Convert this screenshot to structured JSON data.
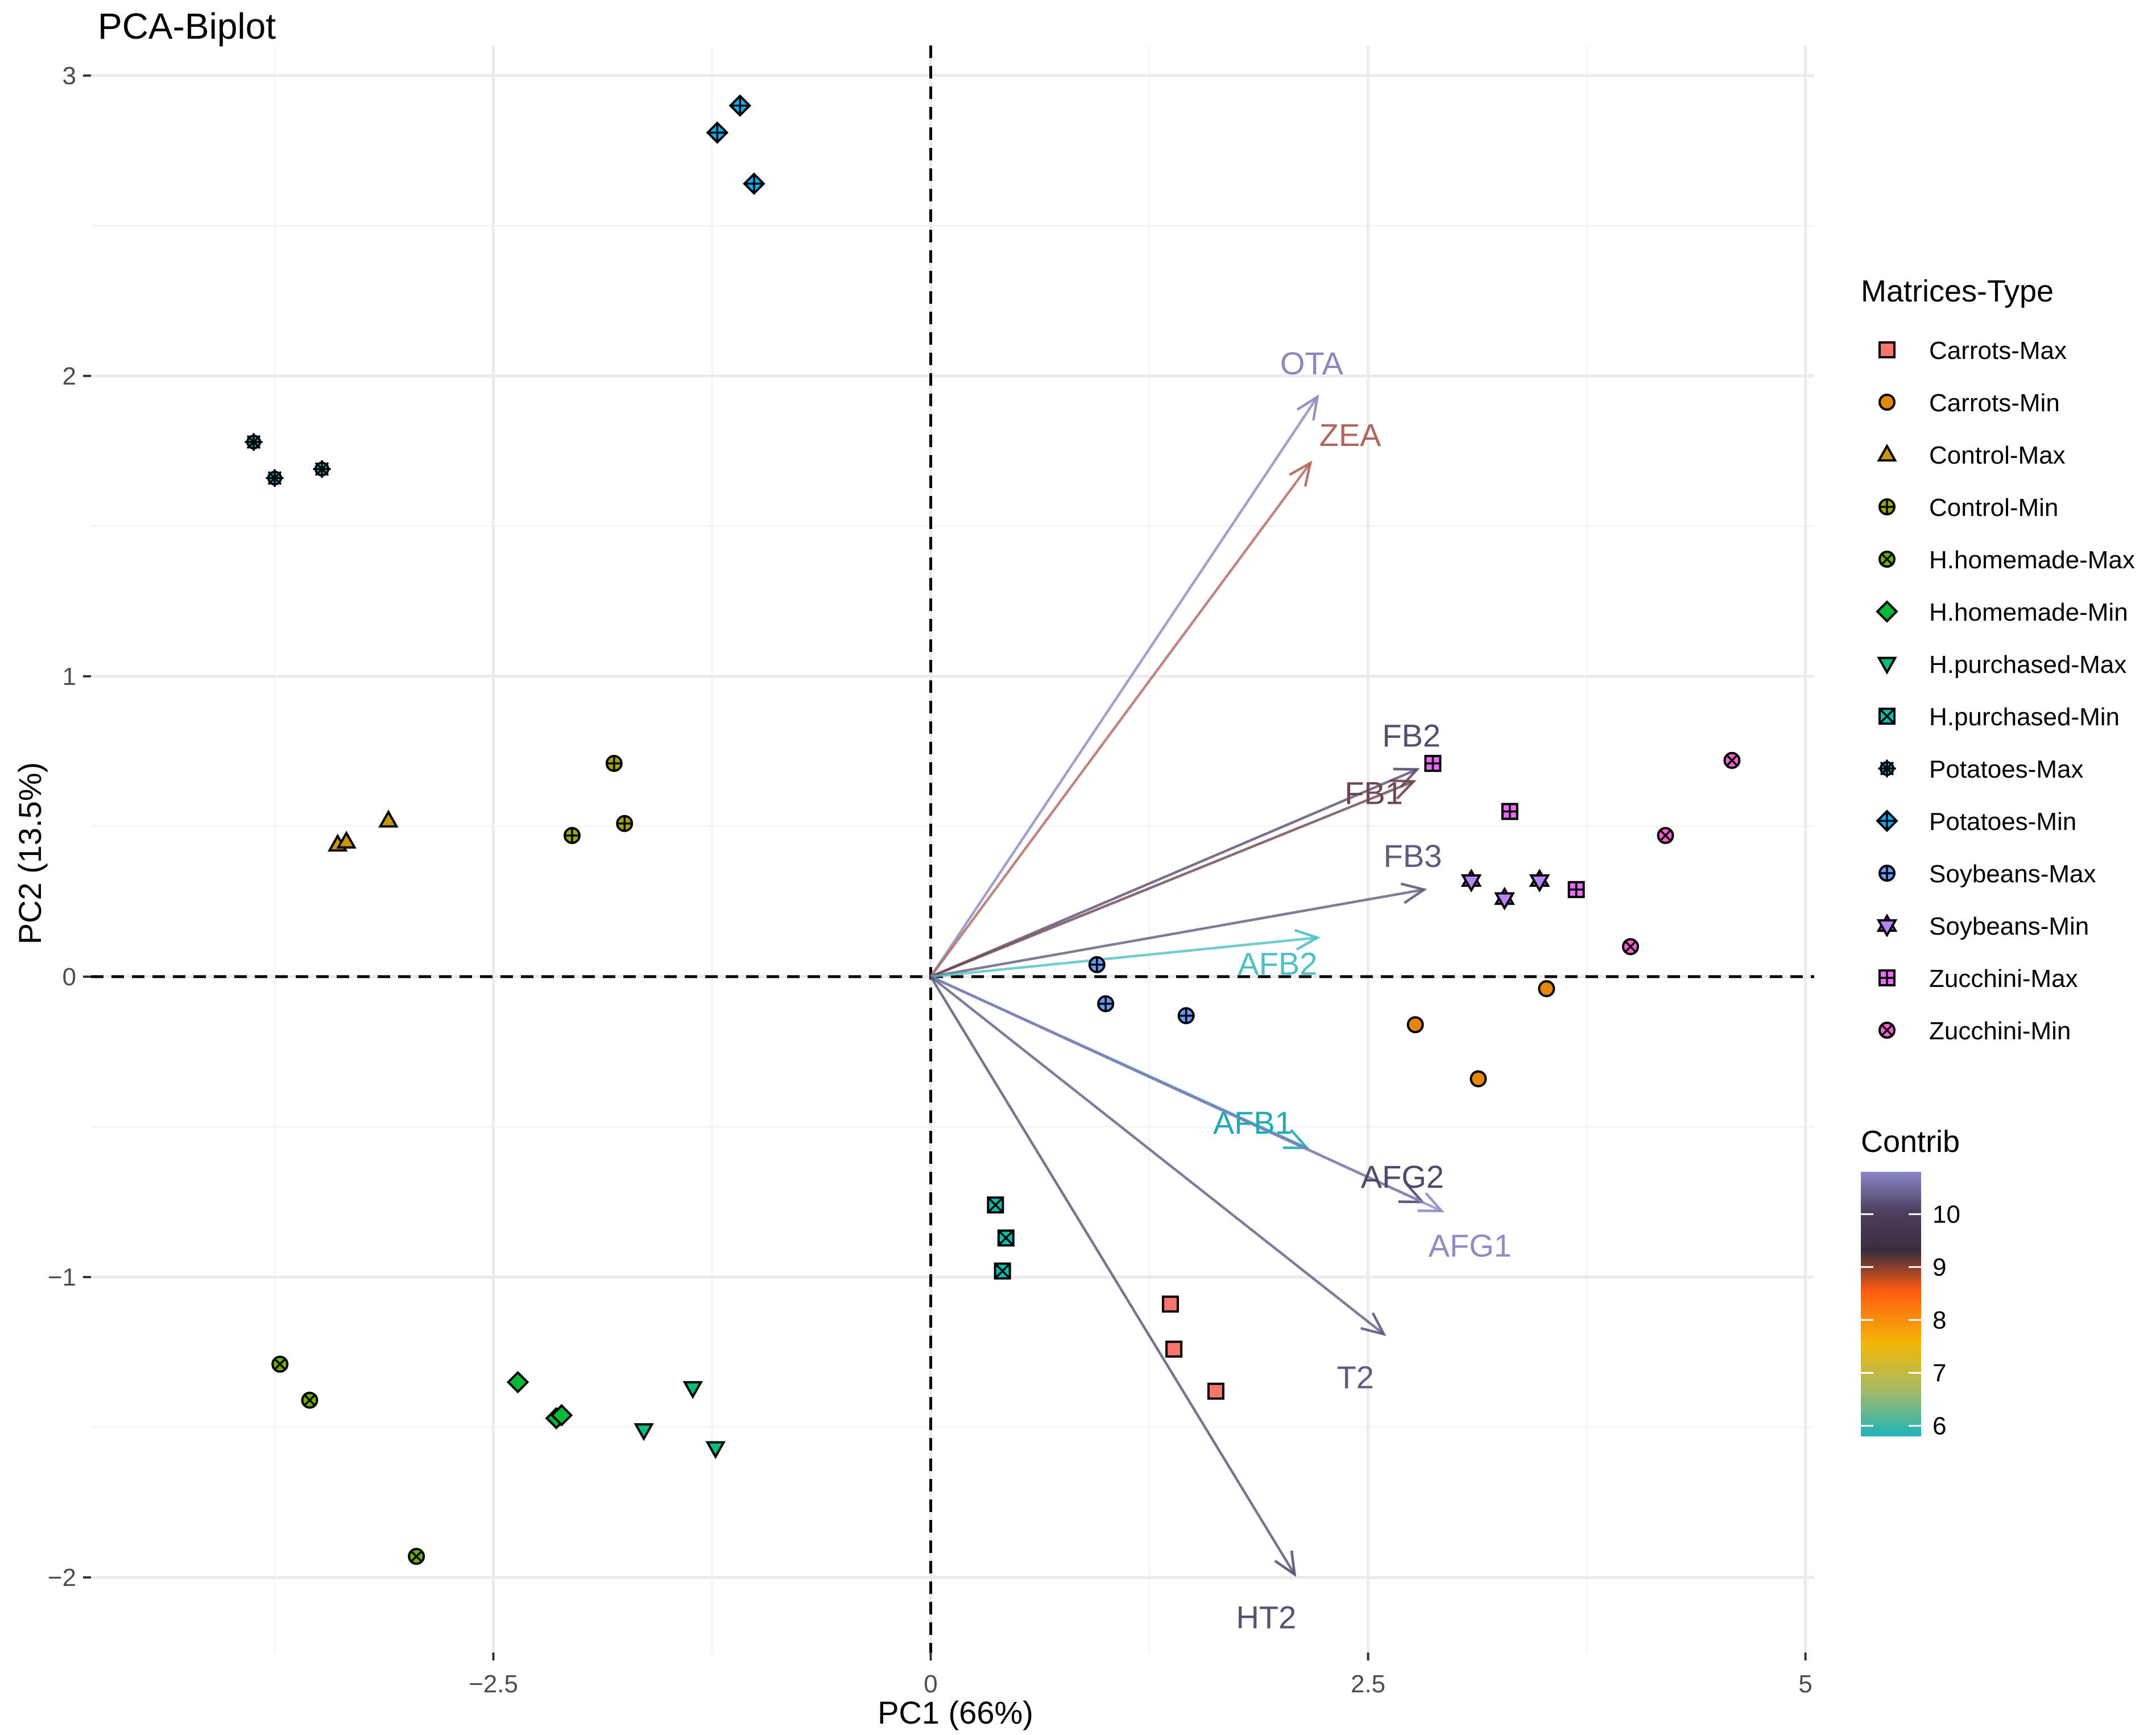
{
  "chart_data": {
    "type": "scatter",
    "title": "PCA-Biplot",
    "xlabel": "PC1 (66%)",
    "ylabel": "PC2 (13.5%)",
    "xlim": [
      -4.8,
      5.05
    ],
    "ylim": [
      -2.25,
      3.1
    ],
    "x_ticks": [
      -2.5,
      0,
      2.5,
      5
    ],
    "x_tick_labels": [
      "−2.5",
      "0",
      "2.5",
      "5"
    ],
    "y_ticks": [
      -2,
      -1,
      0,
      1,
      2,
      3
    ],
    "y_tick_labels": [
      "−2",
      "−1",
      "0",
      "1",
      "2",
      "3"
    ],
    "grid": true,
    "reference_lines": {
      "x": 0,
      "y": 0,
      "style": "dashed"
    },
    "legend": {
      "title": "Matrices-Type",
      "position": "right",
      "entries": [
        "Carrots-Max",
        "Carrots-Min",
        "Control-Max",
        "Control-Min",
        "H.homemade-Max",
        "H.homemade-Min",
        "H.purchased-Max",
        "H.purchased-Min",
        "Potatoes-Max",
        "Potatoes-Min",
        "Soybeans-Max",
        "Soybeans-Min",
        "Zucchini-Max",
        "Zucchini-Min"
      ]
    },
    "colorbar": {
      "title": "Contrib",
      "ticks": [
        6,
        7,
        8,
        9,
        10
      ],
      "tick_labels": [
        "6",
        "7",
        "8",
        "9",
        "10"
      ],
      "range": [
        5.8,
        10.8
      ]
    },
    "series": [
      {
        "name": "Carrots-Max",
        "color": "#F8766D",
        "shape": "square",
        "points": [
          [
            1.37,
            -1.09
          ],
          [
            1.39,
            -1.24
          ],
          [
            1.63,
            -1.38
          ]
        ]
      },
      {
        "name": "Carrots-Min",
        "color": "#E58700",
        "shape": "circle",
        "points": [
          [
            2.77,
            -0.16
          ],
          [
            3.13,
            -0.34
          ],
          [
            3.52,
            -0.04
          ]
        ]
      },
      {
        "name": "Control-Max",
        "color": "#C99800",
        "shape": "triangle",
        "points": [
          [
            -3.39,
            0.44
          ],
          [
            -3.34,
            0.45
          ],
          [
            -3.1,
            0.52
          ]
        ]
      },
      {
        "name": "Control-Min",
        "color": "#A3A500",
        "shape": "circle-plus",
        "points": [
          [
            -1.81,
            0.71
          ],
          [
            -2.05,
            0.47
          ],
          [
            -1.75,
            0.51
          ]
        ]
      },
      {
        "name": "H.homemade-Max",
        "color": "#6BB100",
        "shape": "circle-x",
        "points": [
          [
            -3.72,
            -1.29
          ],
          [
            -3.55,
            -1.41
          ],
          [
            -2.94,
            -1.93
          ]
        ]
      },
      {
        "name": "H.homemade-Min",
        "color": "#00BA38",
        "shape": "diamond",
        "points": [
          [
            -2.36,
            -1.35
          ],
          [
            -2.14,
            -1.47
          ],
          [
            -2.11,
            -1.46
          ]
        ]
      },
      {
        "name": "H.purchased-Max",
        "color": "#00BF7D",
        "shape": "triangle-down",
        "points": [
          [
            -1.64,
            -1.51
          ],
          [
            -1.36,
            -1.37
          ],
          [
            -1.23,
            -1.57
          ]
        ]
      },
      {
        "name": "H.purchased-Min",
        "color": "#00C0AF",
        "shape": "square-x",
        "points": [
          [
            0.37,
            -0.76
          ],
          [
            0.43,
            -0.87
          ],
          [
            0.41,
            -0.98
          ]
        ]
      },
      {
        "name": "Potatoes-Max",
        "color": "#00BCD8",
        "shape": "asterisk",
        "points": [
          [
            -3.87,
            1.78
          ],
          [
            -3.75,
            1.66
          ],
          [
            -3.48,
            1.69
          ]
        ]
      },
      {
        "name": "Potatoes-Min",
        "color": "#00B0F6",
        "shape": "diamond-plus",
        "points": [
          [
            -1.22,
            2.81
          ],
          [
            -1.09,
            2.9
          ],
          [
            -1.01,
            2.64
          ]
        ]
      },
      {
        "name": "Soybeans-Max",
        "color": "#619CFF",
        "shape": "circle-plus",
        "points": [
          [
            0.95,
            0.04
          ],
          [
            1.0,
            -0.09
          ],
          [
            1.46,
            -0.13
          ]
        ]
      },
      {
        "name": "Soybeans-Min",
        "color": "#B983FF",
        "shape": "star-of-david",
        "points": [
          [
            3.09,
            0.32
          ],
          [
            3.28,
            0.26
          ],
          [
            3.48,
            0.32
          ]
        ]
      },
      {
        "name": "Zucchini-Max",
        "color": "#E76BF3",
        "shape": "square-plus",
        "points": [
          [
            2.87,
            0.71
          ],
          [
            3.31,
            0.55
          ],
          [
            3.69,
            0.29
          ]
        ]
      },
      {
        "name": "Zucchini-Min",
        "color": "#FD61D1",
        "shape": "circle-x",
        "points": [
          [
            4.0,
            0.1
          ],
          [
            4.2,
            0.47
          ],
          [
            4.58,
            0.72
          ]
        ]
      }
    ],
    "loadings": [
      {
        "name": "OTA",
        "x": 2.21,
        "y": 1.93,
        "contrib": 10.7,
        "color": "#8A88BD"
      },
      {
        "name": "ZEA",
        "x": 2.17,
        "y": 1.71,
        "contrib": 8.4,
        "color": "#B0665E"
      },
      {
        "name": "FB2",
        "x": 2.78,
        "y": 0.69,
        "contrib": 9.9,
        "color": "#5A4C6F"
      },
      {
        "name": "FB1",
        "x": 2.76,
        "y": 0.65,
        "contrib": 9.3,
        "color": "#6E4650"
      },
      {
        "name": "FB3",
        "x": 2.82,
        "y": 0.29,
        "contrib": 9.8,
        "color": "#625A7C"
      },
      {
        "name": "AFB2",
        "x": 2.21,
        "y": 0.13,
        "contrib": 6.0,
        "color": "#4FBFC4"
      },
      {
        "name": "AFB1",
        "x": 2.15,
        "y": -0.57,
        "contrib": 5.9,
        "color": "#23A9B6"
      },
      {
        "name": "AFG2",
        "x": 2.81,
        "y": -0.75,
        "contrib": 10.1,
        "color": "#4E4968"
      },
      {
        "name": "AFG1",
        "x": 2.92,
        "y": -0.78,
        "contrib": 10.5,
        "color": "#8F8CC5"
      },
      {
        "name": "T2",
        "x": 2.59,
        "y": -1.19,
        "contrib": 10.0,
        "color": "#5F5A7E"
      },
      {
        "name": "HT2",
        "x": 2.08,
        "y": -1.99,
        "contrib": 10.2,
        "color": "#56516F"
      }
    ]
  }
}
